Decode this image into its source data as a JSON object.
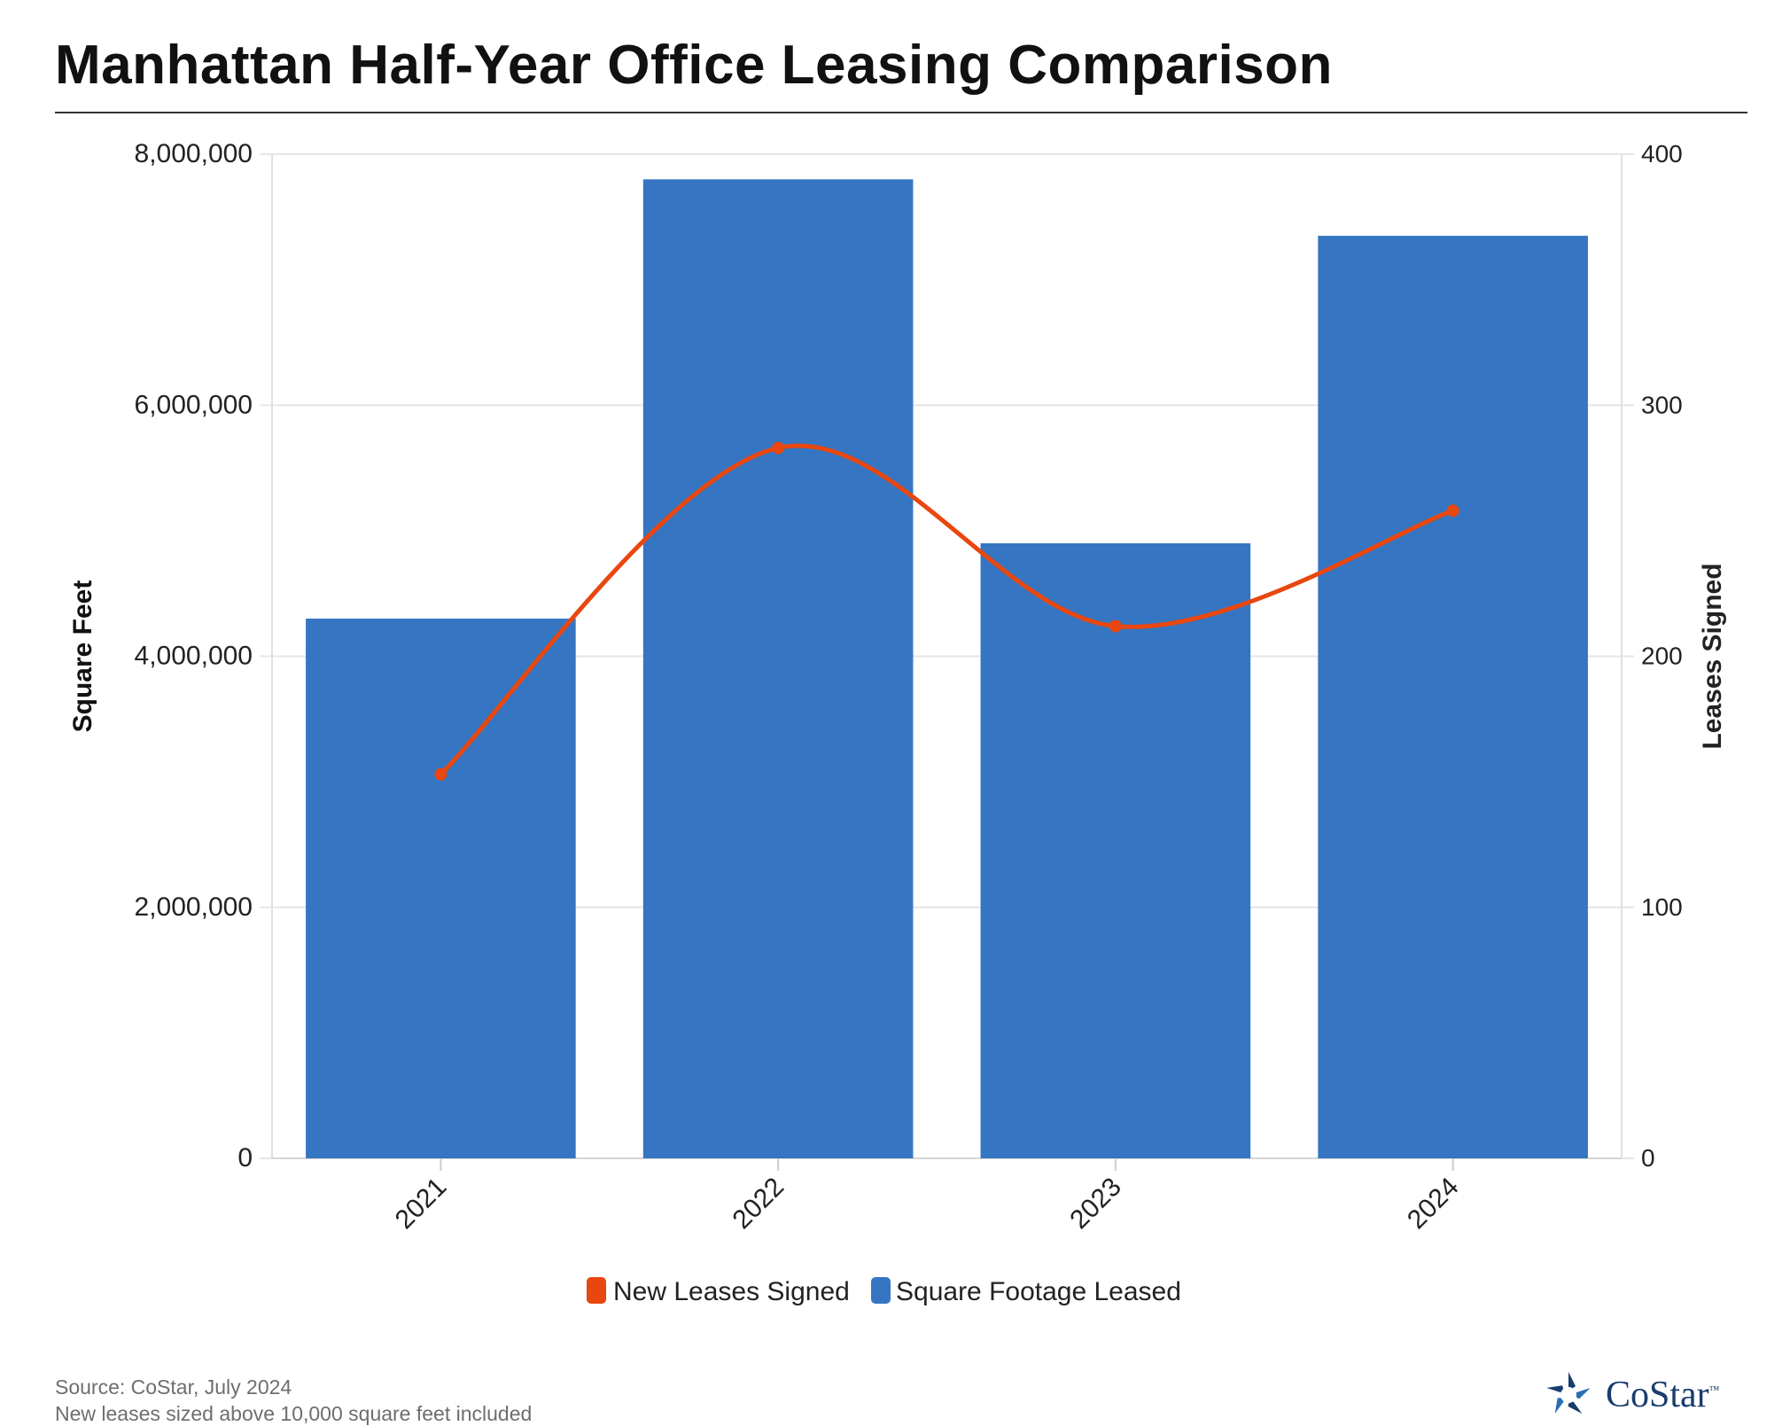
{
  "header": {
    "title": "Manhattan Half-Year Office Leasing Comparison"
  },
  "chart_data": {
    "type": "bar",
    "categories": [
      "2021",
      "2022",
      "2023",
      "2024"
    ],
    "series": [
      {
        "name": "Square Footage Leased",
        "type": "bar",
        "axis": "left",
        "values": [
          4300000,
          7800000,
          4900000,
          7350000
        ],
        "color": "#3575c2"
      },
      {
        "name": "New Leases Signed",
        "type": "line",
        "axis": "right",
        "values": [
          153,
          283,
          212,
          258
        ],
        "color": "#e8470f"
      }
    ],
    "ylabel": "Square Feet",
    "y2label": "Leases Signed",
    "ylim": [
      0,
      8000000
    ],
    "y2lim": [
      0,
      400
    ],
    "yticks": [
      "0",
      "2,000,000",
      "4,000,000",
      "6,000,000",
      "8,000,000"
    ],
    "y2ticks": [
      "0",
      "100",
      "200",
      "300",
      "400"
    ],
    "legend": [
      "New Leases Signed",
      "Square Footage Leased"
    ],
    "legend_position": "bottom-center",
    "grid": true
  },
  "footer": {
    "source": "Source: CoStar, July 2024",
    "note": "New leases sized above 10,000 square feet included"
  },
  "brand": {
    "name": "CoStar",
    "mark": "™",
    "accent": "#1a3c6e"
  }
}
